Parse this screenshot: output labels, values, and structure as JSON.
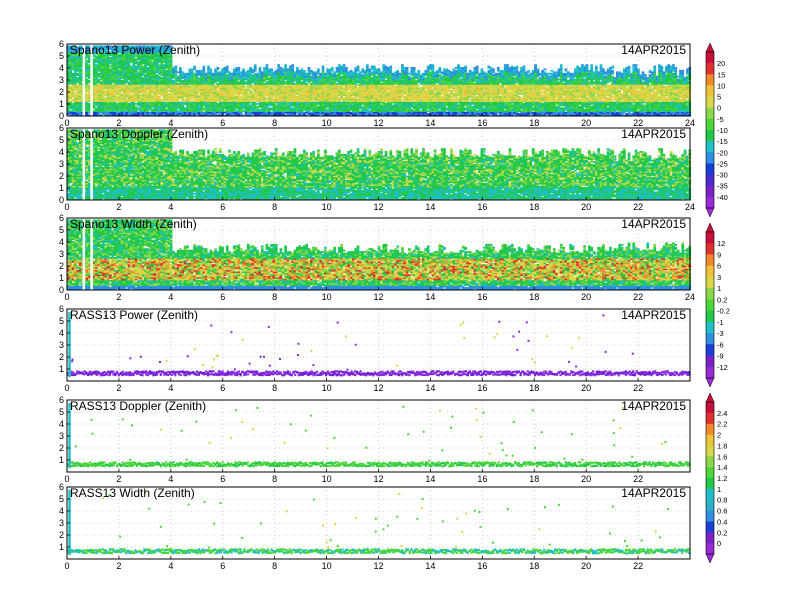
{
  "date_label": "14APR2015",
  "chart_data": [
    {
      "type": "heatmap",
      "title": "Spano13 Power (Zenith)",
      "x_ticks": [
        0,
        2,
        4,
        6,
        8,
        10,
        12,
        14,
        16,
        18,
        20,
        22,
        24
      ],
      "y_ticks": [
        0,
        1,
        2,
        3,
        4,
        5,
        6
      ],
      "xlim": [
        0,
        24
      ],
      "ylim": [
        0,
        6
      ],
      "field": "spano-power",
      "colorbar": "cb-power"
    },
    {
      "type": "heatmap",
      "title": "Spano13 Doppler (Zenith)",
      "x_ticks": [
        0,
        2,
        4,
        6,
        8,
        10,
        12,
        14,
        16,
        18,
        20,
        22,
        24
      ],
      "y_ticks": [
        0,
        1,
        2,
        3,
        4,
        5,
        6
      ],
      "xlim": [
        0,
        24
      ],
      "ylim": [
        0,
        6
      ],
      "field": "spano-doppler",
      "colorbar": "cb-power"
    },
    {
      "type": "heatmap",
      "title": "Spano13 Width (Zenith)",
      "x_ticks": [
        0,
        2,
        4,
        6,
        8,
        10,
        12,
        14,
        16,
        18,
        20,
        22,
        24
      ],
      "y_ticks": [
        0,
        1,
        2,
        3,
        4,
        5,
        6
      ],
      "xlim": [
        0,
        24
      ],
      "ylim": [
        0,
        6
      ],
      "field": "spano-width",
      "colorbar": "cb-width"
    },
    {
      "type": "scatter",
      "title": "RASS13 Power (Zenith)",
      "x_ticks": [
        0,
        2,
        4,
        6,
        8,
        10,
        12,
        14,
        16,
        18,
        20,
        22
      ],
      "y_ticks": [
        1,
        2,
        3,
        4,
        5,
        6
      ],
      "xlim": [
        0,
        24
      ],
      "ylim": [
        0,
        6
      ],
      "field": "rass-power",
      "colorbar": "cb-width"
    },
    {
      "type": "scatter",
      "title": "RASS13 Doppler (Zenith)",
      "x_ticks": [
        0,
        2,
        4,
        6,
        8,
        10,
        12,
        14,
        16,
        18,
        20,
        22
      ],
      "y_ticks": [
        1,
        2,
        3,
        4,
        5,
        6
      ],
      "xlim": [
        0,
        24
      ],
      "ylim": [
        0,
        6
      ],
      "field": "rass-doppler",
      "colorbar": "cb-rass"
    },
    {
      "type": "scatter",
      "title": "RASS13 Width (Zenith)",
      "x_ticks": [
        0,
        2,
        4,
        6,
        8,
        10,
        12,
        14,
        16,
        18,
        20,
        22
      ],
      "y_ticks": [
        1,
        2,
        3,
        4,
        5,
        6
      ],
      "xlim": [
        0,
        24
      ],
      "ylim": [
        0,
        6
      ],
      "field": "rass-width",
      "colorbar": "cb-rass"
    }
  ],
  "colorbars": [
    {
      "id": "cb-power",
      "ticks": [
        "20",
        "15",
        "10",
        "5",
        "0",
        "-5",
        "-10",
        "-15",
        "-20",
        "-25",
        "-30",
        "-35",
        "-40"
      ]
    },
    {
      "id": "cb-width",
      "ticks": [
        "12",
        "9",
        "6",
        "3",
        "1",
        "0.2",
        "-0.2",
        "-1",
        "-3",
        "-6",
        "-9",
        "-12"
      ]
    },
    {
      "id": "cb-rass",
      "ticks": [
        "2.4",
        "2.2",
        "2",
        "1.8",
        "1.6",
        "1.4",
        "1.2",
        "1",
        "0.8",
        "0.6",
        "0.4",
        "0.2",
        "0"
      ]
    }
  ]
}
